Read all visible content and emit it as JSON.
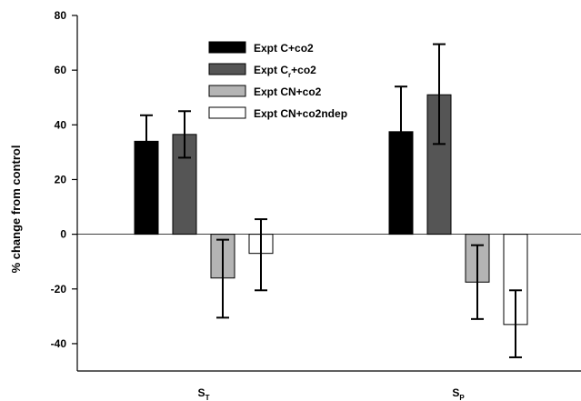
{
  "chart_data": {
    "type": "bar",
    "ylabel": "% change from control",
    "ylim": [
      -50,
      80
    ],
    "yticks": [
      -40,
      -20,
      0,
      20,
      40,
      60,
      80
    ],
    "grid": false,
    "legend_position": "top-center",
    "categories": [
      {
        "base": "S",
        "sub": "T"
      },
      {
        "base": "S",
        "sub": "P"
      }
    ],
    "series": [
      {
        "name": "Expt C+co2",
        "label": {
          "pre": "Expt C",
          "sub": "",
          "post": "+co2"
        },
        "color": "#000000",
        "values": [
          34,
          37.5
        ],
        "err_low": [
          24.5,
          21
        ],
        "err_high": [
          43.5,
          54
        ]
      },
      {
        "name": "Expt Cr+co2",
        "label": {
          "pre": "Expt C",
          "sub": "r",
          "post": "+co2"
        },
        "color": "#555555",
        "values": [
          36.5,
          51
        ],
        "err_low": [
          28,
          33
        ],
        "err_high": [
          45,
          69.5
        ]
      },
      {
        "name": "Expt CN+co2",
        "label": {
          "pre": "Expt CN+co2",
          "sub": "",
          "post": ""
        },
        "color": "#b4b4b4",
        "values": [
          -16,
          -17.5
        ],
        "err_low": [
          -30.5,
          -31
        ],
        "err_high": [
          -2,
          -4
        ]
      },
      {
        "name": "Expt CN+co2ndep",
        "label": {
          "pre": "Expt CN+co2ndep",
          "sub": "",
          "post": ""
        },
        "color": "#ffffff",
        "values": [
          -7,
          -33
        ],
        "err_low": [
          -20.5,
          -45
        ],
        "err_high": [
          5.5,
          -20.5
        ]
      }
    ]
  }
}
